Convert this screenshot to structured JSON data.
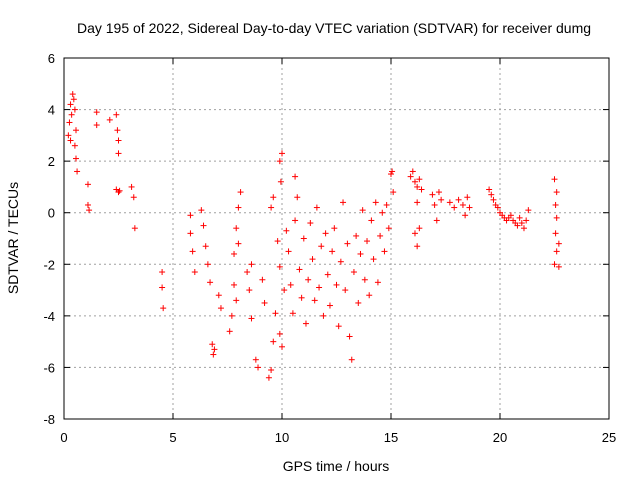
{
  "chart_data": {
    "type": "scatter",
    "title": "Day 195 of 2022, Sidereal Day-to-day VTEC variation (SDTVAR) for receiver dumg",
    "xlabel": "GPS time / hours",
    "ylabel": "SDTVAR / TECUs",
    "xlim": [
      0,
      25
    ],
    "ylim": [
      -8,
      6
    ],
    "xticks": [
      0,
      5,
      10,
      15,
      20,
      25
    ],
    "yticks": [
      -8,
      -6,
      -4,
      -2,
      0,
      2,
      4,
      6
    ],
    "grid": true,
    "marker": "+",
    "color": "#ff0000",
    "series": [
      {
        "name": "SDTVAR",
        "points": [
          [
            0.2,
            3.0
          ],
          [
            0.25,
            3.5
          ],
          [
            0.3,
            4.2
          ],
          [
            0.35,
            3.8
          ],
          [
            0.4,
            4.6
          ],
          [
            0.45,
            4.4
          ],
          [
            0.5,
            4.0
          ],
          [
            0.55,
            3.2
          ],
          [
            0.5,
            2.6
          ],
          [
            0.55,
            2.1
          ],
          [
            0.6,
            1.6
          ],
          [
            0.3,
            2.8
          ],
          [
            1.1,
            1.1
          ],
          [
            1.1,
            0.3
          ],
          [
            1.15,
            0.1
          ],
          [
            1.5,
            3.9
          ],
          [
            1.5,
            3.4
          ],
          [
            2.1,
            3.6
          ],
          [
            2.4,
            3.8
          ],
          [
            2.45,
            3.2
          ],
          [
            2.5,
            2.8
          ],
          [
            2.5,
            2.3
          ],
          [
            2.4,
            0.9
          ],
          [
            2.5,
            0.8
          ],
          [
            2.55,
            0.85
          ],
          [
            3.1,
            1.0
          ],
          [
            3.2,
            0.6
          ],
          [
            3.25,
            -0.6
          ],
          [
            4.5,
            -2.3
          ],
          [
            4.5,
            -2.9
          ],
          [
            4.55,
            -3.7
          ],
          [
            5.8,
            -0.1
          ],
          [
            5.8,
            -0.8
          ],
          [
            5.9,
            -1.5
          ],
          [
            6.0,
            -2.3
          ],
          [
            6.3,
            0.1
          ],
          [
            6.4,
            -0.5
          ],
          [
            6.5,
            -1.3
          ],
          [
            6.6,
            -2.0
          ],
          [
            6.7,
            -2.7
          ],
          [
            6.8,
            -5.1
          ],
          [
            6.85,
            -5.5
          ],
          [
            6.9,
            -5.3
          ],
          [
            7.1,
            -3.2
          ],
          [
            7.2,
            -3.7
          ],
          [
            7.6,
            -4.6
          ],
          [
            7.7,
            -4.0
          ],
          [
            7.8,
            -2.8
          ],
          [
            7.9,
            -3.4
          ],
          [
            7.8,
            -1.6
          ],
          [
            7.9,
            -0.6
          ],
          [
            8.0,
            -1.2
          ],
          [
            8.1,
            0.8
          ],
          [
            8.0,
            0.2
          ],
          [
            8.4,
            -2.3
          ],
          [
            8.5,
            -3.0
          ],
          [
            8.6,
            -2.0
          ],
          [
            8.6,
            -4.1
          ],
          [
            8.8,
            -5.7
          ],
          [
            8.9,
            -6.0
          ],
          [
            9.1,
            -2.6
          ],
          [
            9.2,
            -3.5
          ],
          [
            9.4,
            -6.4
          ],
          [
            9.5,
            -6.1
          ],
          [
            9.6,
            -5.0
          ],
          [
            9.7,
            -3.9
          ],
          [
            9.6,
            0.6
          ],
          [
            9.5,
            0.2
          ],
          [
            9.8,
            -1.1
          ],
          [
            9.9,
            -2.1
          ],
          [
            9.9,
            -4.7
          ],
          [
            10.0,
            -5.2
          ],
          [
            10.1,
            -3.0
          ],
          [
            10.2,
            -0.7
          ],
          [
            10.0,
            2.3
          ],
          [
            9.9,
            2.0
          ],
          [
            9.95,
            1.2
          ],
          [
            10.3,
            -1.5
          ],
          [
            10.4,
            -2.8
          ],
          [
            10.5,
            -3.9
          ],
          [
            10.6,
            -0.3
          ],
          [
            10.6,
            1.4
          ],
          [
            10.7,
            0.6
          ],
          [
            10.8,
            -2.2
          ],
          [
            10.9,
            -3.3
          ],
          [
            11.0,
            -1.0
          ],
          [
            11.1,
            -4.3
          ],
          [
            11.2,
            -2.6
          ],
          [
            11.3,
            -0.4
          ],
          [
            11.4,
            -1.8
          ],
          [
            11.5,
            -3.4
          ],
          [
            11.6,
            0.2
          ],
          [
            11.7,
            -2.9
          ],
          [
            11.8,
            -1.3
          ],
          [
            11.9,
            -4.0
          ],
          [
            12.0,
            -0.8
          ],
          [
            12.1,
            -2.4
          ],
          [
            12.2,
            -3.6
          ],
          [
            12.3,
            -1.5
          ],
          [
            12.4,
            -0.6
          ],
          [
            12.5,
            -2.8
          ],
          [
            12.6,
            -4.4
          ],
          [
            12.7,
            -1.9
          ],
          [
            12.8,
            0.4
          ],
          [
            12.9,
            -3.0
          ],
          [
            13.0,
            -1.2
          ],
          [
            13.1,
            -4.8
          ],
          [
            13.2,
            -5.7
          ],
          [
            13.3,
            -2.3
          ],
          [
            13.4,
            -0.9
          ],
          [
            13.5,
            -3.5
          ],
          [
            13.6,
            -1.6
          ],
          [
            13.7,
            0.1
          ],
          [
            13.8,
            -2.6
          ],
          [
            13.9,
            -1.1
          ],
          [
            14.0,
            -3.2
          ],
          [
            14.1,
            -0.3
          ],
          [
            14.2,
            -1.8
          ],
          [
            14.3,
            0.4
          ],
          [
            14.4,
            -2.7
          ],
          [
            14.5,
            -0.9
          ],
          [
            14.6,
            0.0
          ],
          [
            14.7,
            -1.5
          ],
          [
            14.8,
            0.3
          ],
          [
            14.9,
            -0.6
          ],
          [
            15.0,
            1.5
          ],
          [
            15.05,
            1.6
          ],
          [
            15.1,
            0.8
          ],
          [
            15.9,
            1.4
          ],
          [
            16.0,
            1.6
          ],
          [
            16.1,
            1.2
          ],
          [
            16.2,
            1.0
          ],
          [
            16.3,
            1.3
          ],
          [
            16.4,
            0.9
          ],
          [
            16.1,
            -0.8
          ],
          [
            16.2,
            -1.3
          ],
          [
            16.3,
            -0.6
          ],
          [
            16.2,
            0.4
          ],
          [
            16.9,
            0.7
          ],
          [
            17.0,
            0.3
          ],
          [
            17.1,
            -0.3
          ],
          [
            17.3,
            0.5
          ],
          [
            17.2,
            0.8
          ],
          [
            17.7,
            0.4
          ],
          [
            17.9,
            0.2
          ],
          [
            18.1,
            0.5
          ],
          [
            18.3,
            0.3
          ],
          [
            18.5,
            0.6
          ],
          [
            18.4,
            -0.1
          ],
          [
            18.6,
            0.2
          ],
          [
            19.5,
            0.9
          ],
          [
            19.6,
            0.7
          ],
          [
            19.7,
            0.5
          ],
          [
            19.8,
            0.3
          ],
          [
            19.9,
            0.2
          ],
          [
            20.0,
            0.0
          ],
          [
            20.1,
            -0.1
          ],
          [
            20.2,
            -0.2
          ],
          [
            20.3,
            -0.3
          ],
          [
            20.4,
            -0.2
          ],
          [
            20.5,
            -0.1
          ],
          [
            20.6,
            -0.3
          ],
          [
            20.7,
            -0.4
          ],
          [
            20.8,
            -0.5
          ],
          [
            20.9,
            -0.2
          ],
          [
            21.0,
            -0.4
          ],
          [
            21.1,
            -0.6
          ],
          [
            21.2,
            -0.3
          ],
          [
            21.3,
            0.1
          ],
          [
            22.5,
            1.3
          ],
          [
            22.6,
            0.8
          ],
          [
            22.55,
            0.3
          ],
          [
            22.6,
            -0.2
          ],
          [
            22.55,
            -0.8
          ],
          [
            22.6,
            -1.5
          ],
          [
            22.5,
            -2.0
          ],
          [
            22.7,
            -1.2
          ],
          [
            22.7,
            -2.1
          ]
        ]
      }
    ]
  }
}
